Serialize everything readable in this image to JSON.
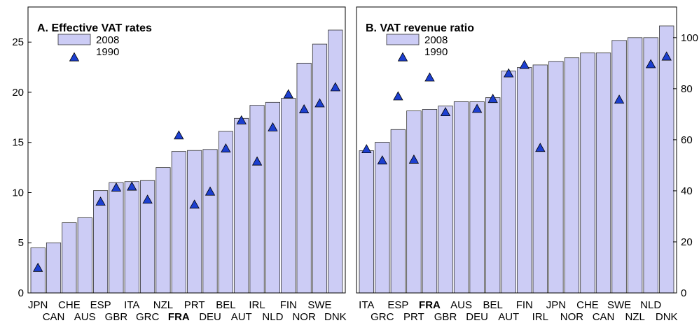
{
  "chart_data": [
    {
      "type": "bar",
      "title": "A. Effective VAT rates",
      "highlight": "FRA",
      "categories": [
        "JPN",
        "CAN",
        "CHE",
        "AUS",
        "ESP",
        "GBR",
        "ITA",
        "GRC",
        "NZL",
        "FRA",
        "PRT",
        "DEU",
        "BEL",
        "AUT",
        "IRL",
        "NLD",
        "FIN",
        "NOR",
        "SWE",
        "DNK"
      ],
      "series": [
        {
          "name": "2008",
          "color": "#ccccf5",
          "values": [
            4.5,
            5.0,
            7.0,
            7.5,
            10.2,
            11.0,
            11.1,
            11.2,
            12.5,
            14.1,
            14.2,
            14.3,
            16.1,
            17.4,
            18.7,
            19.0,
            19.4,
            22.9,
            24.8,
            26.2
          ]
        },
        {
          "name": "1990",
          "color": "#1c3fd0",
          "values": [
            2.5,
            null,
            null,
            null,
            9.1,
            10.5,
            10.6,
            9.3,
            null,
            15.7,
            8.8,
            10.1,
            14.4,
            17.2,
            13.1,
            16.5,
            19.8,
            18.3,
            18.9,
            20.5
          ]
        }
      ],
      "ylim": [
        0,
        28.5
      ],
      "yticks": [
        0,
        5,
        10,
        15,
        20,
        25
      ],
      "axis_side": "left"
    },
    {
      "type": "bar",
      "title": "B. VAT revenue ratio",
      "highlight": "FRA",
      "categories": [
        "ITA",
        "GRC",
        "ESP",
        "PRT",
        "FRA",
        "GBR",
        "AUS",
        "DEU",
        "BEL",
        "AUT",
        "FIN",
        "IRL",
        "JPN",
        "NOR",
        "CHE",
        "CAN",
        "SWE",
        "NZL",
        "NLD",
        "DNK"
      ],
      "series": [
        {
          "name": "2008",
          "color": "#ccccf5",
          "values": [
            55.7,
            59,
            64,
            71.3,
            71.9,
            73.2,
            74.9,
            74.9,
            76.5,
            86.9,
            88.3,
            89.3,
            90.7,
            92.1,
            94,
            94,
            98.9,
            100,
            100,
            104.6
          ]
        },
        {
          "name": "1990",
          "color": "#1c3fd0",
          "values": [
            56.3,
            51.9,
            77,
            52.2,
            84.4,
            70.8,
            null,
            72.1,
            76,
            86,
            89.3,
            56.8,
            null,
            null,
            null,
            null,
            75.7,
            null,
            89.6,
            92.6
          ]
        }
      ],
      "ylim": [
        0,
        112
      ],
      "yticks": [
        0,
        20,
        40,
        60,
        80,
        100
      ],
      "axis_side": "right"
    }
  ]
}
